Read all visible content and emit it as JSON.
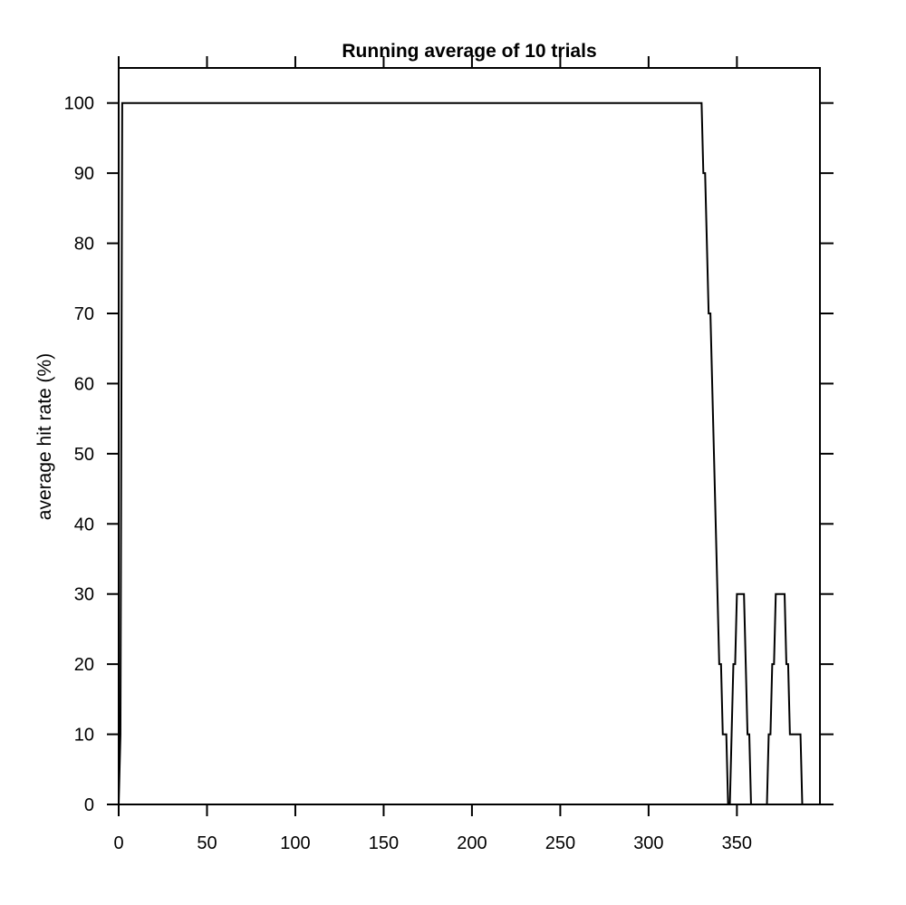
{
  "chart_data": {
    "type": "line",
    "title": "Running average of 10 trials",
    "xlabel": "",
    "ylabel": "average hit rate (%)",
    "xlim": [
      0,
      397
    ],
    "ylim": [
      0,
      105
    ],
    "grid": false,
    "x_ticks": [
      0,
      50,
      100,
      150,
      200,
      250,
      300,
      350
    ],
    "y_ticks": [
      0,
      10,
      20,
      30,
      40,
      50,
      60,
      70,
      80,
      90,
      100
    ],
    "x_tick_labels": [
      "0",
      "50",
      "100",
      "150",
      "200",
      "250",
      "300",
      "350"
    ],
    "y_tick_labels": [
      "0",
      "10",
      "20",
      "30",
      "40",
      "50",
      "60",
      "70",
      "80",
      "90",
      "100"
    ],
    "series": [
      {
        "name": "",
        "color": "#000000",
        "x": [
          0,
          1,
          2,
          3,
          329,
          330,
          331,
          332,
          333,
          334,
          335,
          336,
          337,
          338,
          339,
          340,
          341,
          342,
          343,
          344,
          345,
          346,
          347,
          348,
          349,
          350,
          351,
          352,
          353,
          354,
          355,
          356,
          357,
          358,
          359,
          360,
          361,
          362,
          363,
          364,
          365,
          366,
          367,
          368,
          369,
          370,
          371,
          372,
          373,
          374,
          375,
          376,
          377,
          378,
          379,
          380,
          381,
          382,
          383,
          384,
          385,
          386,
          387
        ],
        "y": [
          0,
          10,
          100,
          100,
          100,
          100,
          90,
          90,
          80,
          70,
          70,
          60,
          50,
          40,
          30,
          20,
          20,
          10,
          10,
          10,
          0,
          0,
          10,
          20,
          20,
          30,
          30,
          30,
          30,
          30,
          20,
          10,
          10,
          0,
          0,
          0,
          0,
          0,
          0,
          0,
          0,
          0,
          0,
          10,
          10,
          20,
          20,
          30,
          30,
          30,
          30,
          30,
          30,
          20,
          20,
          10,
          10,
          10,
          10,
          10,
          10,
          10,
          0
        ]
      }
    ]
  }
}
